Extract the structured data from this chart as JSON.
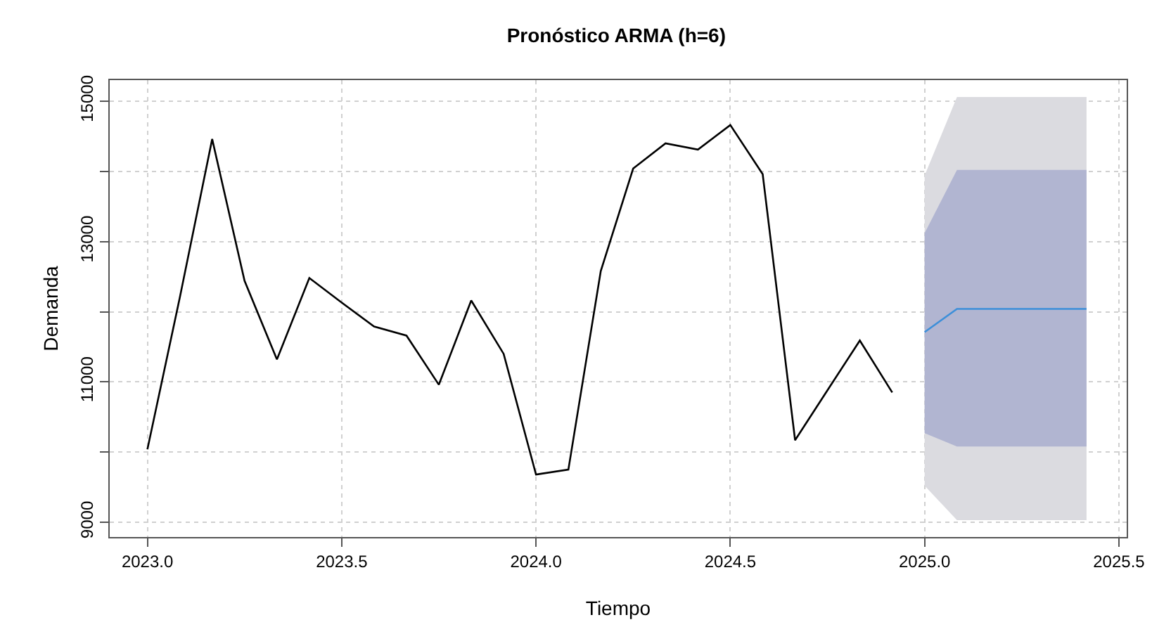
{
  "chart_data": {
    "type": "line",
    "title": "Pronóstico ARMA (h=6)",
    "xlabel": "Tiempo",
    "ylabel": "Demanda",
    "xlim": [
      2022.903,
      2025.52
    ],
    "ylim": [
      8790,
      15300
    ],
    "xticks": [
      {
        "value": 2023,
        "label": "2023.0"
      },
      {
        "value": 2023.5,
        "label": "2023.5"
      },
      {
        "value": 2024,
        "label": "2024.0"
      },
      {
        "value": 2024.5,
        "label": "2024.5"
      },
      {
        "value": 2025,
        "label": "2025.0"
      },
      {
        "value": 2025.5,
        "label": "2025.5"
      }
    ],
    "yticks": [
      9000,
      {
        "value": 10000,
        "label": null
      },
      11000,
      {
        "value": 12000,
        "label": null
      },
      13000,
      {
        "value": 14000,
        "label": null
      },
      15000
    ],
    "grid": true,
    "line_style": "solid",
    "marker": "none",
    "series": [
      {
        "color": "#dbdbe0",
        "x": [
          2025,
          2025.0833,
          2025.1667,
          2025.25,
          2025.3333,
          2025.4167
        ],
        "values": [
          null,
          null,
          null,
          null,
          null,
          null
        ],
        "lower": [
          9520,
          9030,
          9030,
          9030,
          9030,
          9030
        ],
        "upper": [
          13940,
          15060,
          15060,
          15060,
          15060,
          15060
        ]
      },
      {
        "color": "#b1b5d1",
        "x": [
          2025,
          2025.0833,
          2025.1667,
          2025.25,
          2025.3333,
          2025.4167
        ],
        "values": [
          null,
          null,
          null,
          null,
          null,
          null
        ],
        "lower": [
          10270,
          10080,
          10080,
          10080,
          10080,
          10080
        ],
        "upper": [
          13120,
          14020,
          14020,
          14020,
          14020,
          14020
        ]
      },
      {
        "color": "#3d8fd9",
        "x": [
          2025,
          2025.0833,
          2025.1667,
          2025.25,
          2025.3333,
          2025.4167
        ],
        "values": [
          11710,
          12040,
          12040,
          12040,
          12040,
          12040
        ]
      },
      {
        "color": "#000000",
        "x": [
          2023,
          2023.0833,
          2023.1667,
          2023.25,
          2023.3333,
          2023.4167,
          2023.5,
          2023.5833,
          2023.6667,
          2023.75,
          2023.8333,
          2023.9167,
          2024,
          2024.0833,
          2024.1667,
          2024.25,
          2024.3333,
          2024.4167,
          2024.5,
          2024.5833,
          2024.6667,
          2024.75,
          2024.8333,
          2024.9167
        ],
        "values": [
          10040,
          12200,
          14460,
          12440,
          11320,
          12480,
          12130,
          11790,
          11660,
          10960,
          12160,
          11400,
          9680,
          9750,
          12580,
          14040,
          14400,
          14310,
          14660,
          13960,
          10170,
          10880,
          11590,
          10850
        ]
      }
    ]
  }
}
